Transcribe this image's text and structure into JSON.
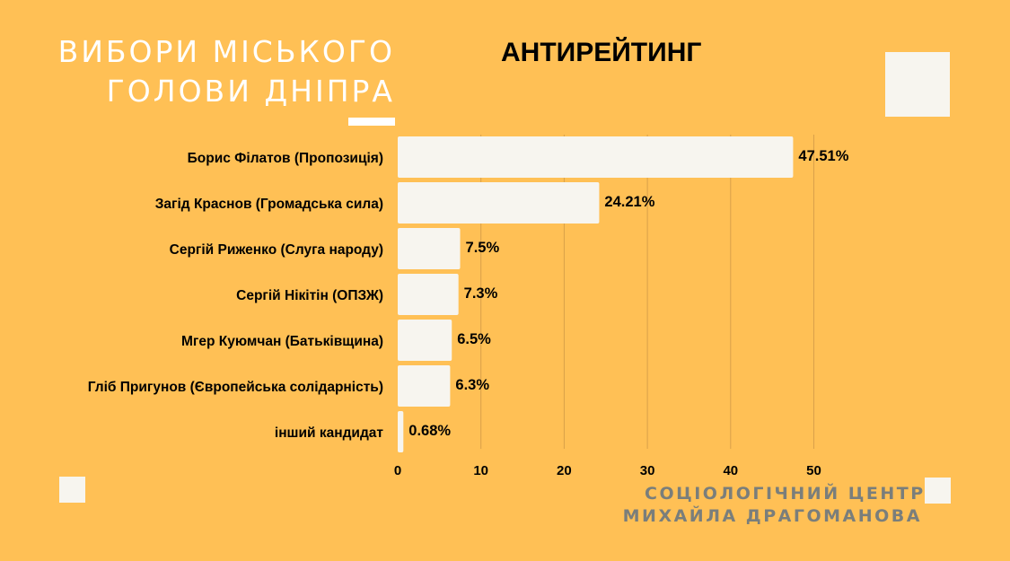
{
  "header": {
    "title_line1": "ВИБОРИ МІСЬКОГО",
    "title_line2": "ГОЛОВИ ДНІПРА",
    "chart_title": "АНТИРЕЙТИНГ"
  },
  "footer": {
    "source_line1": "СОЦІОЛОГІЧНИЙ ЦЕНТР",
    "source_line2": "МИХАЙЛА ДРАГОМАНОВА"
  },
  "colors": {
    "background": "#FFC055",
    "bar": "#F7F5EF",
    "gridline": "#D9A04A",
    "title": "#FFFFFF",
    "source": "#7A7E7B"
  },
  "chart_data": {
    "type": "bar",
    "orientation": "horizontal",
    "title": "АНТИРЕЙТИНГ",
    "categories": [
      "Борис Філатов (Пропозиція)",
      "Загід Краснов (Громадська сила)",
      "Сергій Риженко (Слуга народу)",
      "Сергій Нікітін (ОПЗЖ)",
      "Мгер Куюмчан (Батьківщина)",
      "Гліб Пригунов (Європейська солідарність)",
      "інший кандидат"
    ],
    "values": [
      47.51,
      24.21,
      7.5,
      7.3,
      6.5,
      6.3,
      0.68
    ],
    "value_labels": [
      "47.51%",
      "24.21%",
      "7.5%",
      "7.3%",
      "6.5%",
      "6.3%",
      "0.68%"
    ],
    "xticks": [
      0,
      10,
      20,
      30,
      40,
      50
    ],
    "xlim": [
      0,
      50
    ],
    "xlabel": "",
    "ylabel": "",
    "grid": "vertical"
  }
}
